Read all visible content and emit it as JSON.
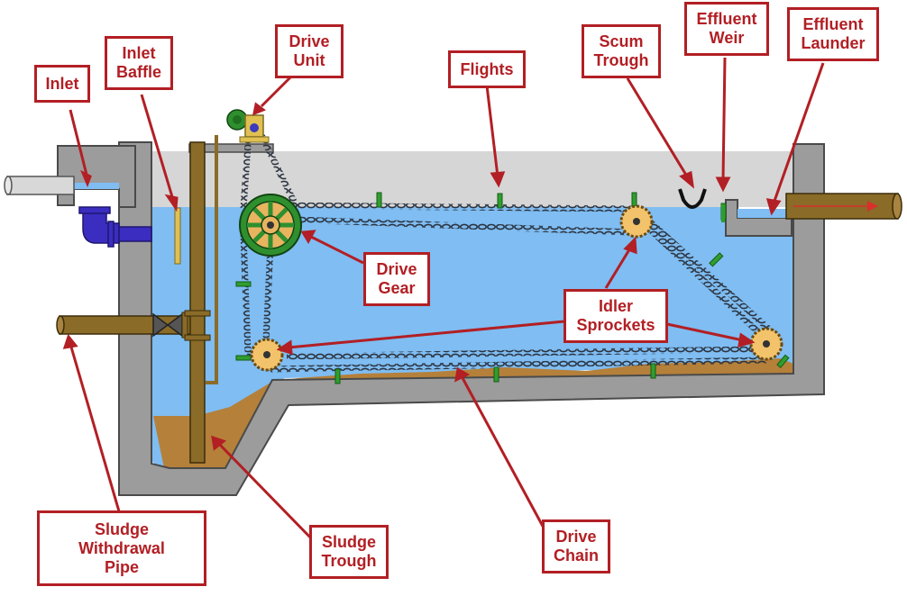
{
  "labels": {
    "inlet": "Inlet",
    "inlet_baffle": "Inlet\nBaffle",
    "drive_unit": "Drive\nUnit",
    "flights": "Flights",
    "scum_trough": "Scum\nTrough",
    "effluent_weir": "Effluent\nWeir",
    "effluent_launder": "Effluent\nLaunder",
    "drive_gear": "Drive\nGear",
    "idler_sprockets": "Idler\nSprockets",
    "sludge_withdrawal_pipe": "Sludge\nWithdrawal\nPipe",
    "sludge_trough": "Sludge\nTrough",
    "drive_chain": "Drive\nChain"
  },
  "colors": {
    "callout": "#b21f24",
    "water": "#7fbdf2",
    "concrete": "#9c9c9c",
    "sludge": "#b5803a",
    "chain_pipe": "#8a6b28",
    "gear": "#2f8f2f",
    "sprocket": "#f2c36b",
    "inlet_elbow": "#3b2dbf",
    "flight": "#2f9e2f"
  }
}
